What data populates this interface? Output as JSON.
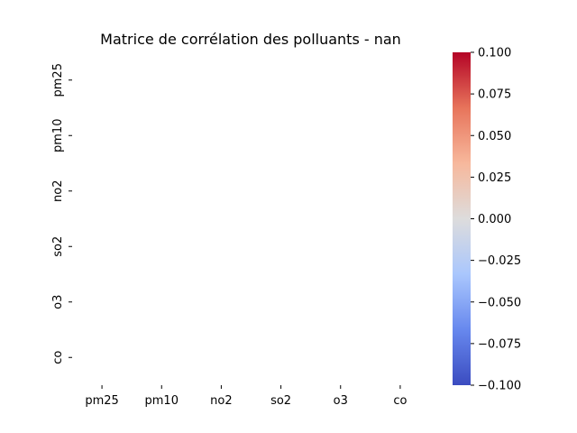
{
  "chart_data": {
    "type": "heatmap",
    "title": "Matrice de corrélation des polluants - nan",
    "x_labels": [
      "pm25",
      "pm10",
      "no2",
      "so2",
      "o3",
      "co"
    ],
    "y_labels": [
      "pm25",
      "pm10",
      "no2",
      "so2",
      "o3",
      "co"
    ],
    "values": [
      [
        null,
        null,
        null,
        null,
        null,
        null
      ],
      [
        null,
        null,
        null,
        null,
        null,
        null
      ],
      [
        null,
        null,
        null,
        null,
        null,
        null
      ],
      [
        null,
        null,
        null,
        null,
        null,
        null
      ],
      [
        null,
        null,
        null,
        null,
        null,
        null
      ],
      [
        null,
        null,
        null,
        null,
        null,
        null
      ]
    ],
    "colormap": "coolwarm",
    "colorbar": {
      "range": [
        -0.1,
        0.1
      ],
      "ticks": [
        "0.100",
        "0.075",
        "0.050",
        "0.025",
        "0.000",
        "−0.025",
        "−0.050",
        "−0.075",
        "−0.100"
      ],
      "tick_values": [
        0.1,
        0.075,
        0.05,
        0.025,
        0.0,
        -0.025,
        -0.05,
        -0.075,
        -0.1
      ],
      "colors": [
        "#b40426",
        "#e7745b",
        "#f7b89c",
        "#dddcdc",
        "#aac7fd",
        "#6788ee",
        "#3b4cc0"
      ]
    },
    "grid": false
  }
}
